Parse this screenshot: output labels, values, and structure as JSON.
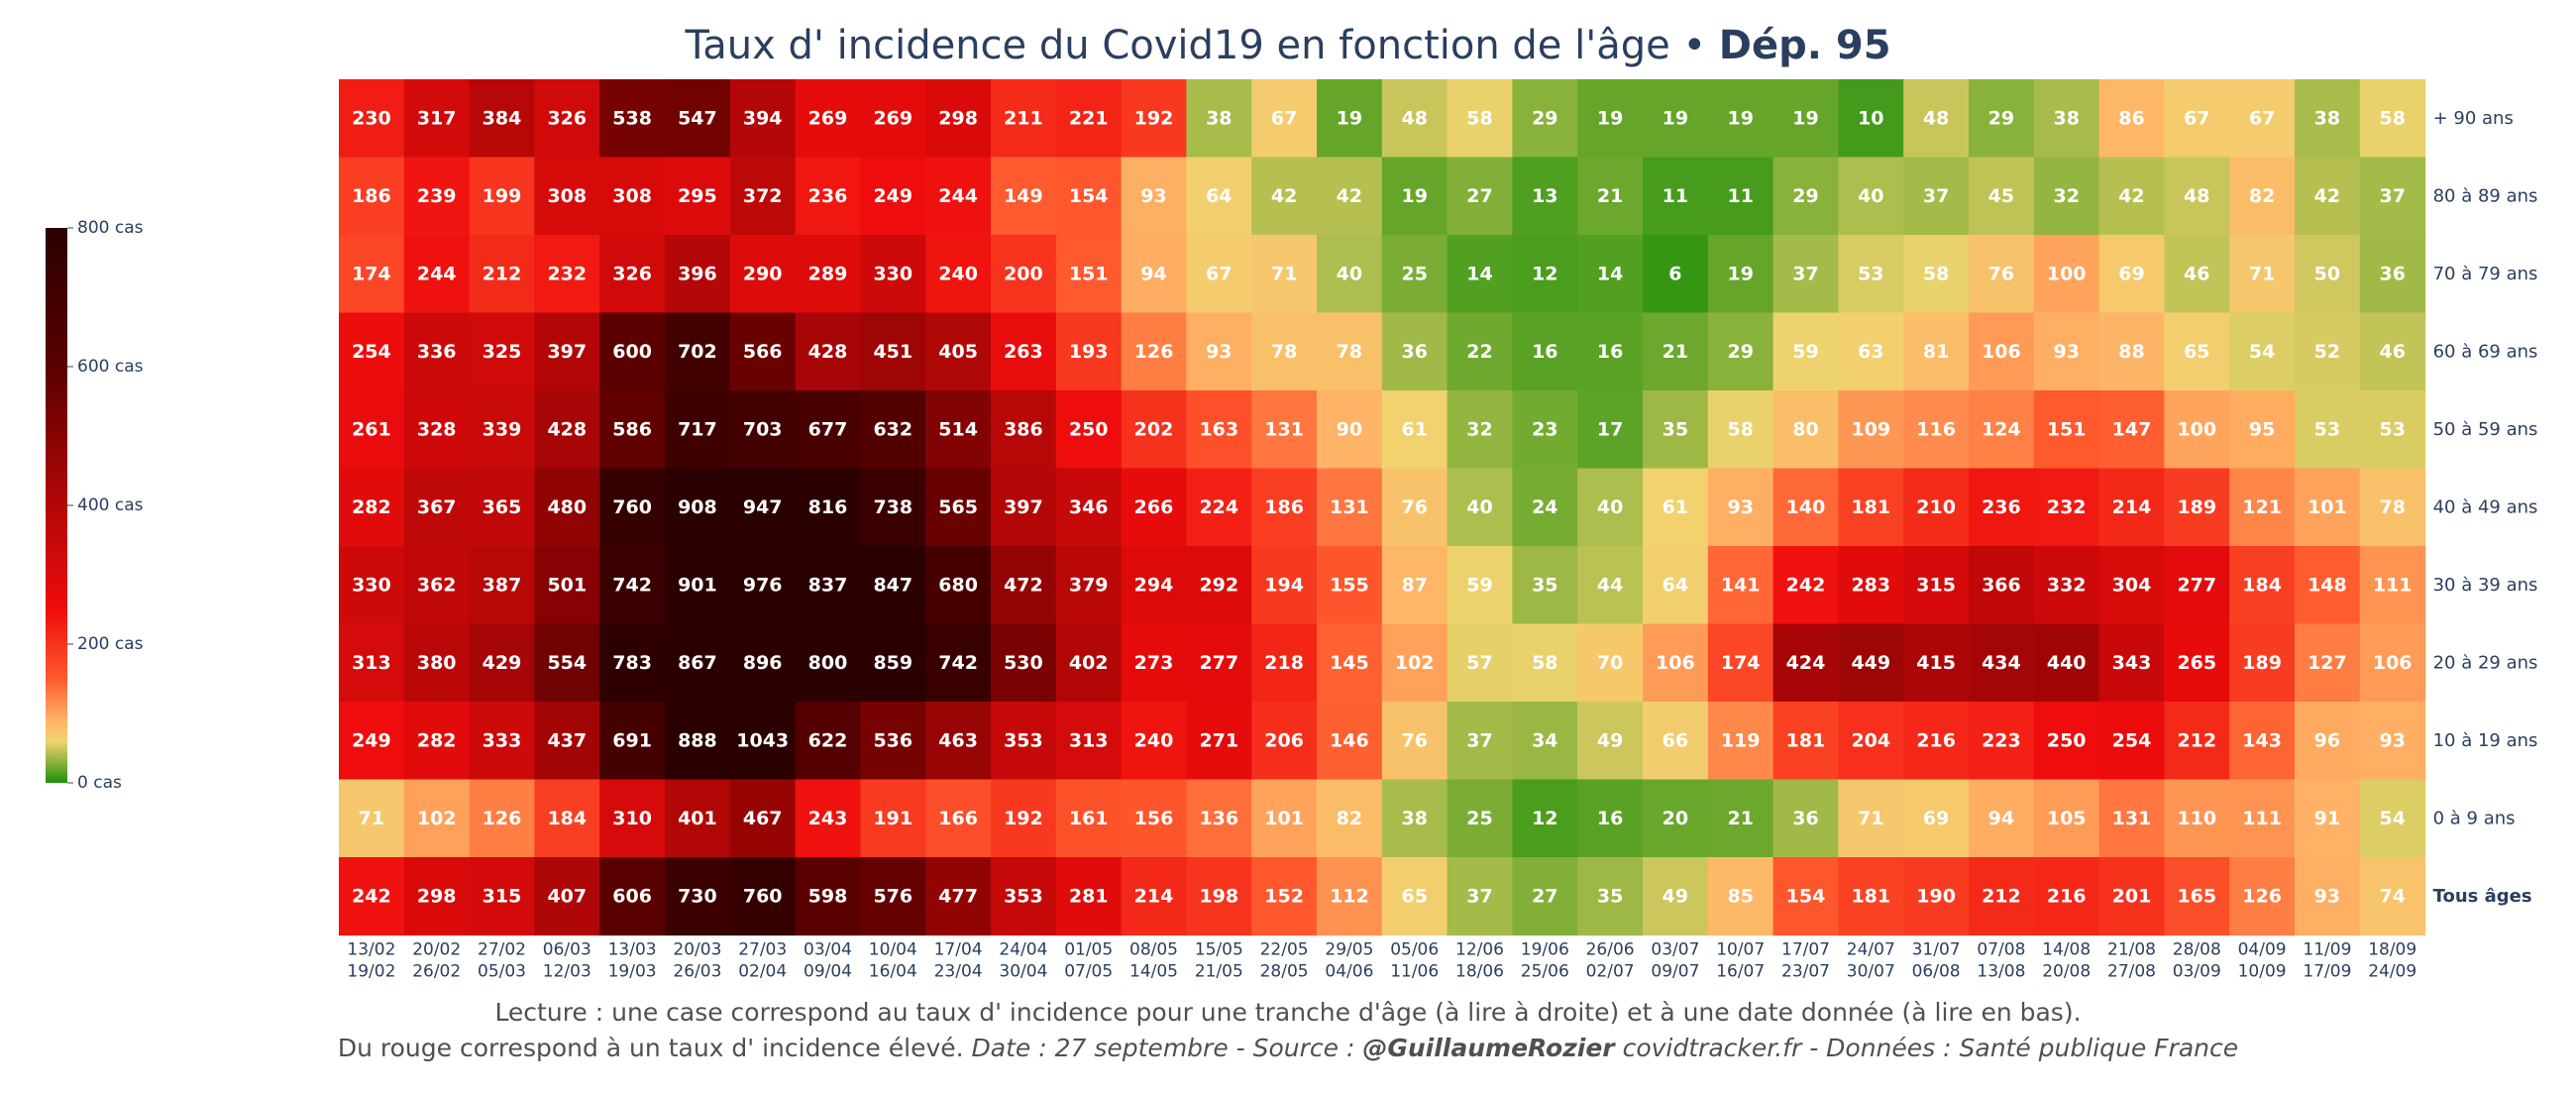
{
  "title": {
    "main": "Taux d' incidence du Covid19 en fonction de l'âge",
    "separator": " • ",
    "bold": "Dép. 95"
  },
  "colorbar": {
    "ticks": [
      {
        "value": 800,
        "label": "800 cas"
      },
      {
        "value": 600,
        "label": "600 cas"
      },
      {
        "value": 400,
        "label": "400 cas"
      },
      {
        "value": 200,
        "label": "200 cas"
      },
      {
        "value": 0,
        "label": "0 cas"
      }
    ],
    "stops": [
      {
        "value": 0,
        "color": "#1f8f0a"
      },
      {
        "value": 30,
        "color": "#8db33d"
      },
      {
        "value": 60,
        "color": "#f0d36f"
      },
      {
        "value": 90,
        "color": "#ffb366"
      },
      {
        "value": 150,
        "color": "#ff5a2e"
      },
      {
        "value": 250,
        "color": "#ee0c0c"
      },
      {
        "value": 450,
        "color": "#9e0505"
      },
      {
        "value": 600,
        "color": "#5a0000"
      },
      {
        "value": 800,
        "color": "#2b0000"
      }
    ]
  },
  "chart_data": {
    "type": "heatmap",
    "title": "Taux d' incidence du Covid19 en fonction de l'âge • Dép. 95",
    "zmin": 0,
    "zmax": 800,
    "rows": [
      "+ 90 ans",
      "80 à 89 ans",
      "70 à 79 ans",
      "60 à 69 ans",
      "50 à 59 ans",
      "40 à 49 ans",
      "30 à 39 ans",
      "20 à 29 ans",
      "10 à 19 ans",
      "0 à 9 ans",
      "Tous âges"
    ],
    "bold_rows": [
      "Tous âges"
    ],
    "columns": [
      [
        "13/02",
        "19/02"
      ],
      [
        "20/02",
        "26/02"
      ],
      [
        "27/02",
        "05/03"
      ],
      [
        "06/03",
        "12/03"
      ],
      [
        "13/03",
        "19/03"
      ],
      [
        "20/03",
        "26/03"
      ],
      [
        "27/03",
        "02/04"
      ],
      [
        "03/04",
        "09/04"
      ],
      [
        "10/04",
        "16/04"
      ],
      [
        "17/04",
        "23/04"
      ],
      [
        "24/04",
        "30/04"
      ],
      [
        "01/05",
        "07/05"
      ],
      [
        "08/05",
        "14/05"
      ],
      [
        "15/05",
        "21/05"
      ],
      [
        "22/05",
        "28/05"
      ],
      [
        "29/05",
        "04/06"
      ],
      [
        "05/06",
        "11/06"
      ],
      [
        "12/06",
        "18/06"
      ],
      [
        "19/06",
        "25/06"
      ],
      [
        "26/06",
        "02/07"
      ],
      [
        "03/07",
        "09/07"
      ],
      [
        "10/07",
        "16/07"
      ],
      [
        "17/07",
        "23/07"
      ],
      [
        "24/07",
        "30/07"
      ],
      [
        "31/07",
        "06/08"
      ],
      [
        "07/08",
        "13/08"
      ],
      [
        "14/08",
        "20/08"
      ],
      [
        "21/08",
        "27/08"
      ],
      [
        "28/08",
        "03/09"
      ],
      [
        "04/09",
        "10/09"
      ],
      [
        "11/09",
        "17/09"
      ],
      [
        "18/09",
        "24/09"
      ]
    ],
    "values": [
      [
        230,
        317,
        384,
        326,
        538,
        547,
        394,
        269,
        269,
        298,
        211,
        221,
        192,
        38,
        67,
        19,
        48,
        58,
        29,
        19,
        19,
        19,
        19,
        10,
        48,
        29,
        38,
        86,
        67,
        67,
        38,
        58
      ],
      [
        186,
        239,
        199,
        308,
        308,
        295,
        372,
        236,
        249,
        244,
        149,
        154,
        93,
        64,
        42,
        42,
        19,
        27,
        13,
        21,
        11,
        11,
        29,
        40,
        37,
        45,
        32,
        42,
        48,
        82,
        42,
        37
      ],
      [
        174,
        244,
        212,
        232,
        326,
        396,
        290,
        289,
        330,
        240,
        200,
        151,
        94,
        67,
        71,
        40,
        25,
        14,
        12,
        14,
        6,
        19,
        37,
        53,
        58,
        76,
        100,
        69,
        46,
        71,
        50,
        36
      ],
      [
        254,
        336,
        325,
        397,
        600,
        702,
        566,
        428,
        451,
        405,
        263,
        193,
        126,
        93,
        78,
        78,
        36,
        22,
        16,
        16,
        21,
        29,
        59,
        63,
        81,
        106,
        93,
        88,
        65,
        54,
        52,
        46
      ],
      [
        261,
        328,
        339,
        428,
        586,
        717,
        703,
        677,
        632,
        514,
        386,
        250,
        202,
        163,
        131,
        90,
        61,
        32,
        23,
        17,
        35,
        58,
        80,
        109,
        116,
        124,
        151,
        147,
        100,
        95,
        53,
        53
      ],
      [
        282,
        367,
        365,
        480,
        760,
        908,
        947,
        816,
        738,
        565,
        397,
        346,
        266,
        224,
        186,
        131,
        76,
        40,
        24,
        40,
        61,
        93,
        140,
        181,
        210,
        236,
        232,
        214,
        189,
        121,
        101,
        78
      ],
      [
        330,
        362,
        387,
        501,
        742,
        901,
        976,
        837,
        847,
        680,
        472,
        379,
        294,
        292,
        194,
        155,
        87,
        59,
        35,
        44,
        64,
        141,
        242,
        283,
        315,
        366,
        332,
        304,
        277,
        184,
        148,
        111
      ],
      [
        313,
        380,
        429,
        554,
        783,
        867,
        896,
        800,
        859,
        742,
        530,
        402,
        273,
        277,
        218,
        145,
        102,
        57,
        58,
        70,
        106,
        174,
        424,
        449,
        415,
        434,
        440,
        343,
        265,
        189,
        127,
        106
      ],
      [
        249,
        282,
        333,
        437,
        691,
        888,
        1043,
        622,
        536,
        463,
        353,
        313,
        240,
        271,
        206,
        146,
        76,
        37,
        34,
        49,
        66,
        119,
        181,
        204,
        216,
        223,
        250,
        254,
        212,
        143,
        96,
        93
      ],
      [
        71,
        102,
        126,
        184,
        310,
        401,
        467,
        243,
        191,
        166,
        192,
        161,
        156,
        136,
        101,
        82,
        38,
        25,
        12,
        16,
        20,
        21,
        36,
        71,
        69,
        94,
        105,
        131,
        110,
        111,
        91,
        54
      ],
      [
        242,
        298,
        315,
        407,
        606,
        730,
        760,
        598,
        576,
        477,
        353,
        281,
        214,
        198,
        152,
        112,
        65,
        37,
        27,
        35,
        49,
        85,
        154,
        181,
        190,
        212,
        216,
        201,
        165,
        126,
        93,
        74
      ]
    ]
  },
  "notes": {
    "line1": "Lecture : une case correspond au taux d' incidence pour une tranche d'âge (à lire à droite) et à une date donnée (à lire en bas).",
    "line2_plain": "Du rouge correspond à un taux d' incidence élevé. ",
    "line2_italic_a": " Date : 27 septembre - Source : ",
    "line2_bold": "@GuillaumeRozier",
    "line2_italic_b": " covidtracker.fr - Données : Santé publique France"
  }
}
